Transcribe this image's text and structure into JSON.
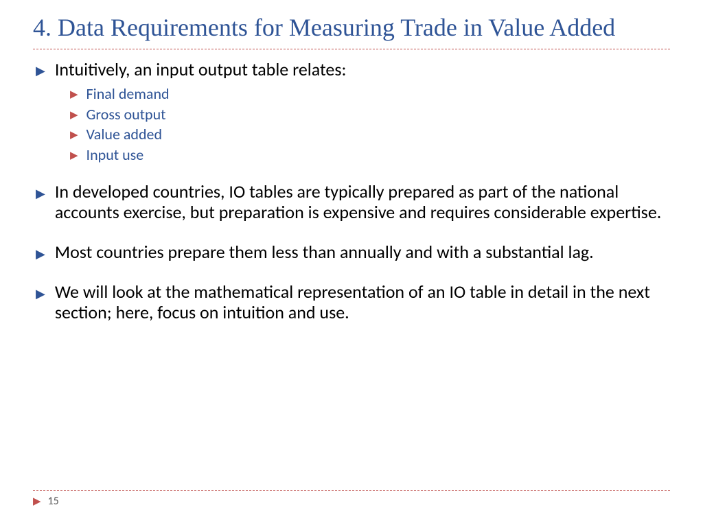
{
  "title": "4. Data Requirements for Measuring Trade in Value Added",
  "body": {
    "intro": "Intuitively, an input output table relates:",
    "sub_items": [
      "Final demand",
      "Gross output",
      "Value added",
      "Input use"
    ],
    "para1": "In developed countries, IO tables are typically prepared as part of the national accounts exercise, but preparation is expensive and requires considerable expertise.",
    "para2": "Most countries prepare them less than annually and with a substantial lag.",
    "para3": "We will look at the mathematical representation of an IO table in detail in the next section; here, focus on intuition and use."
  },
  "page_number": "15",
  "colors": {
    "title": "#2f5496",
    "bullet_main": "#2f5496",
    "bullet_sub": "#c0504d",
    "sub_text": "#2f5496",
    "body_text": "#000000",
    "divider": "#c0504d",
    "page_num": "#595959",
    "background": "#ffffff"
  },
  "typography": {
    "title_font": "Georgia serif",
    "title_size_pt": 28,
    "body_font": "Gill Sans",
    "body_size_pt": 20,
    "sub_size_pt": 17,
    "page_num_size_pt": 12
  }
}
